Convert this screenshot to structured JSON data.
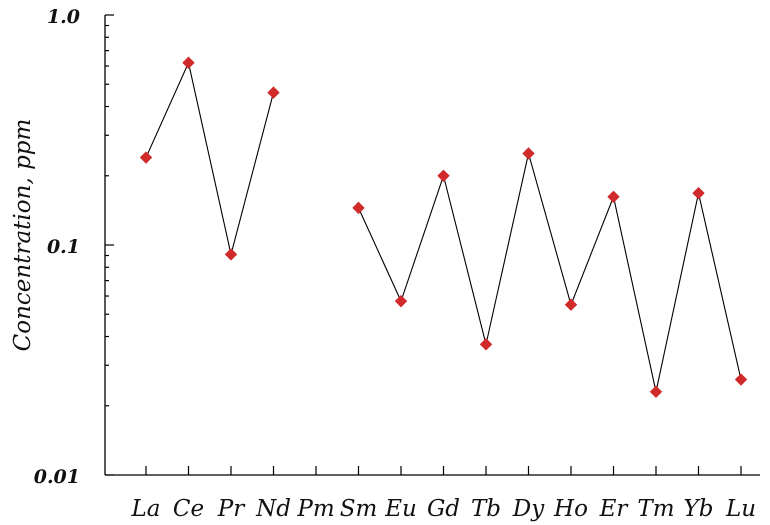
{
  "chart_data": {
    "type": "line",
    "title": "",
    "xlabel": "",
    "ylabel": "Concentration, ppm",
    "yscale": "log",
    "ylim": [
      0.01,
      1.0
    ],
    "yticks": [
      0.01,
      0.1,
      1.0
    ],
    "ytick_labels": [
      "0.01",
      "0.1",
      "1.0"
    ],
    "categories": [
      "La",
      "Ce",
      "Pr",
      "Nd",
      "Pm",
      "Sm",
      "Eu",
      "Gd",
      "Tb",
      "Dy",
      "Ho",
      "Er",
      "Tm",
      "Yb",
      "Lu"
    ],
    "series": [
      {
        "values": [
          0.24,
          0.62,
          0.091,
          0.46,
          null,
          0.145,
          0.057,
          0.2,
          0.037,
          0.25,
          0.055,
          0.162,
          0.023,
          0.168,
          0.026
        ],
        "color": "#d02a2a",
        "marker": "diamond",
        "line_color": "#000000"
      }
    ],
    "grid": false,
    "legend": "none"
  }
}
